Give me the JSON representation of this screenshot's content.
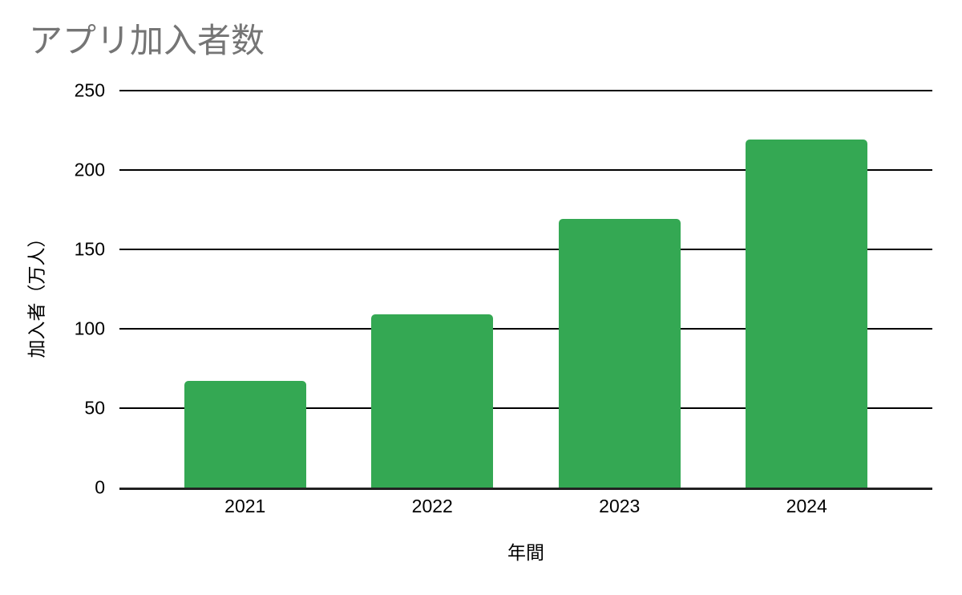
{
  "chart_data": {
    "type": "bar",
    "title": "アプリ加入者数",
    "categories": [
      "2021",
      "2022",
      "2023",
      "2024"
    ],
    "values": [
      67,
      109,
      169,
      219
    ],
    "xlabel": "年間",
    "ylabel": "加入者（万人）",
    "ylim": [
      0,
      250
    ],
    "yticks": [
      0,
      50,
      100,
      150,
      200,
      250
    ],
    "grid": true,
    "legend": "none",
    "bar_color": "#34a853",
    "gridline_color": "#000000",
    "baseline_color": "#212121",
    "title_color": "#757575",
    "axis_text_color": "#000000",
    "background_color": "#ffffff"
  }
}
